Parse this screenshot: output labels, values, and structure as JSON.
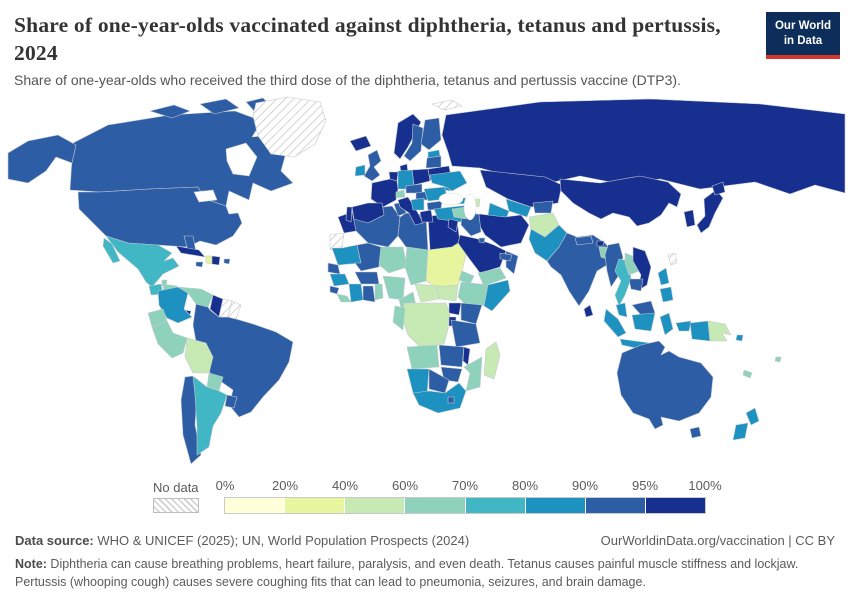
{
  "header": {
    "title": "Share of one-year-olds vaccinated against diphtheria, tetanus and pertussis, 2024",
    "subtitle": "Share of one-year-olds who received the third dose of the diphtheria, tetanus and pertussis vaccine (DTP3)."
  },
  "logo": {
    "line1": "Our World",
    "line2": "in Data",
    "bg_color": "#0d2e5a",
    "accent_color": "#d8352c"
  },
  "legend": {
    "no_data_label": "No data",
    "tick_labels": [
      "0%",
      "20%",
      "40%",
      "60%",
      "70%",
      "80%",
      "90%",
      "95%",
      "100%"
    ]
  },
  "footer": {
    "source_label": "Data source:",
    "source_text": " WHO & UNICEF (2025); UN, World Population Prospects (2024)",
    "link_text": "OurWorldinData.org/vaccination | CC BY",
    "note_label": "Note:",
    "note_text": " Diphtheria can cause breathing problems, heart failure, paralysis, and even death. Tetanus causes painful muscle stiffness and lockjaw. Pertussis (whooping cough) causes severe coughing fits that can lead to pneumonia, seizures, and brain damage."
  },
  "chart_data": {
    "type": "choropleth_map",
    "title": "Share of one-year-olds vaccinated against diphtheria, tetanus and pertussis, 2024",
    "metric": "DTP3 third-dose coverage among one-year-olds",
    "unit": "%",
    "year": 2024,
    "legend_position": "bottom",
    "bins": [
      {
        "range": "0-20%",
        "color": "#ffffd9"
      },
      {
        "range": "20-40%",
        "color": "#e8f59f"
      },
      {
        "range": "40-60%",
        "color": "#c7e9b4"
      },
      {
        "range": "60-70%",
        "color": "#8fd2bb"
      },
      {
        "range": "70-80%",
        "color": "#41b6c4"
      },
      {
        "range": "80-90%",
        "color": "#1d91c0"
      },
      {
        "range": "90-95%",
        "color": "#2d5da5"
      },
      {
        "range": "95-100%",
        "color": "#17308f"
      }
    ],
    "no_data_color": "hatched",
    "countries": {
      "Canada": "90-95%",
      "United States": "90-95%",
      "Alaska": "90-95%",
      "Greenland": "no data",
      "Svalbard": "no data",
      "Mexico": "70-80%",
      "Guatemala": "70-80%",
      "Belize": "60-70%",
      "Honduras": "60-70%",
      "Nicaragua": "70-80%",
      "Costa Rica": "no data",
      "Panama": "95-100%",
      "Cuba": "95-100%",
      "Jamaica": "90-95%",
      "Haiti": "20-40%",
      "Dominican Republic": "95-100%",
      "Puerto Rico": "90-95%",
      "Colombia": "80-90%",
      "Venezuela": "60-70%",
      "Guyana": "95-100%",
      "Suriname": "no data",
      "French Guiana": "no data",
      "Brazil": "90-95%",
      "Ecuador": "60-70%",
      "Peru": "60-70%",
      "Bolivia": "40-60%",
      "Paraguay": "60-70%",
      "Chile": "90-95%",
      "Argentina": "70-80%",
      "Uruguay": "90-95%",
      "Morocco": "95-100%",
      "Western Sahara": "no data",
      "Algeria": "90-95%",
      "Tunisia": "90-95%",
      "Libya": "90-95%",
      "Egypt": "95-100%",
      "Mauritania": "80-90%",
      "Mali": "90-95%",
      "Niger": "60-70%",
      "Chad": "60-70%",
      "Sudan": "20-40%",
      "Eritrea": "60-70%",
      "Senegal": "90-95%",
      "Guinea": "80-90%",
      "Sierra Leone": "90-95%",
      "Liberia": "60-70%",
      "Cote d'Ivoire": "80-90%",
      "Ghana": "90-95%",
      "Benin-Togo": "60-70%",
      "Burkina Faso": "90-95%",
      "Nigeria": "60-70%",
      "Cameroon": "60-70%",
      "Central African Republic": "40-60%",
      "South Sudan": "40-60%",
      "Ethiopia": "60-70%",
      "Somalia": "80-90%",
      "Uganda": "95-100%",
      "Kenya": "90-95%",
      "Rwanda-Burundi": "95-100%",
      "DR Congo": "40-60%",
      "Congo-Gabon": "60-70%",
      "Tanzania": "90-95%",
      "Angola": "60-70%",
      "Zambia": "90-95%",
      "Malawi": "95-100%",
      "Mozambique": "60-70%",
      "Zimbabwe": "90-95%",
      "Botswana": "90-95%",
      "Namibia": "80-90%",
      "South Africa": "80-90%",
      "Lesotho": "90-95%",
      "Madagascar": "40-60%",
      "Iceland": "95-100%",
      "Norway": "95-100%",
      "Sweden": "90-95%",
      "Finland": "90-95%",
      "Denmark": "95-100%",
      "United Kingdom": "90-95%",
      "Ireland": "80-90%",
      "Estonia": "80-90%",
      "Latvia-Lithuania": "90-95%",
      "Belarus": "95-100%",
      "Poland": "95-100%",
      "Germany": "80-90%",
      "Belgium-Netherlands": "95-100%",
      "France": "95-100%",
      "Spain": "95-100%",
      "Portugal": "95-100%",
      "Italy": "95-100%",
      "Switzerland": "60-70%",
      "Czechia-Austria": "90-95%",
      "Hungary": "90-95%",
      "Serbia-Balkans": "80-90%",
      "Greece": "95-100%",
      "Bulgaria": "90-95%",
      "Romania": "80-90%",
      "Moldova": "80-90%",
      "Ukraine": "80-90%",
      "Turkey": "80-90%",
      "Russia": "95-100%",
      "Kazakhstan": "95-100%",
      "Uzbekistan": "80-90%",
      "Turkmenistan": "80-90%",
      "Kyrgyzstan-Tajikistan": "90-95%",
      "Georgia": "80-90%",
      "Azerbaijan": "40-60%",
      "Armenia": "90-95%",
      "Iran": "95-100%",
      "Iraq": "90-95%",
      "Syria": "60-70%",
      "Jordan-Israel": "95-100%",
      "Saudi Arabia": "95-100%",
      "Yemen": "60-70%",
      "Oman": "90-95%",
      "UAE-Qatar": "90-95%",
      "Kuwait": "90-95%",
      "Afghanistan": "40-60%",
      "Pakistan": "80-90%",
      "India": "90-95%",
      "Nepal": "90-95%",
      "Bhutan": "95-100%",
      "Bangladesh": "60-70%",
      "Sri Lanka": "95-100%",
      "China": "95-100%",
      "Japan": "95-100%",
      "Japan-Hokkaido": "95-100%",
      "Korea": "95-100%",
      "Taiwan": "no data",
      "Myanmar": "90-95%",
      "Thailand": "70-80%",
      "Laos": "60-70%",
      "Vietnam": "95-100%",
      "Cambodia": "90-95%",
      "Malaysia": "80-90%",
      "Sumatra": "80-90%",
      "Borneo-Malaysia": "90-95%",
      "Borneo-Indonesia": "80-90%",
      "Java": "80-90%",
      "Sulawesi": "80-90%",
      "Lesser Sunda": "80-90%",
      "Philippines-Luzon": "80-90%",
      "Philippines-Visayas": "80-90%",
      "Indonesia-Papua": "80-90%",
      "Papua New Guinea": "40-60%",
      "Solomon Islands": "80-90%",
      "Fiji": "60-70%",
      "New Caledonia": "60-70%",
      "Australia": "90-95%",
      "Tasmania": "90-95%",
      "New Zealand North": "80-90%",
      "New Zealand South": "80-90%"
    }
  }
}
